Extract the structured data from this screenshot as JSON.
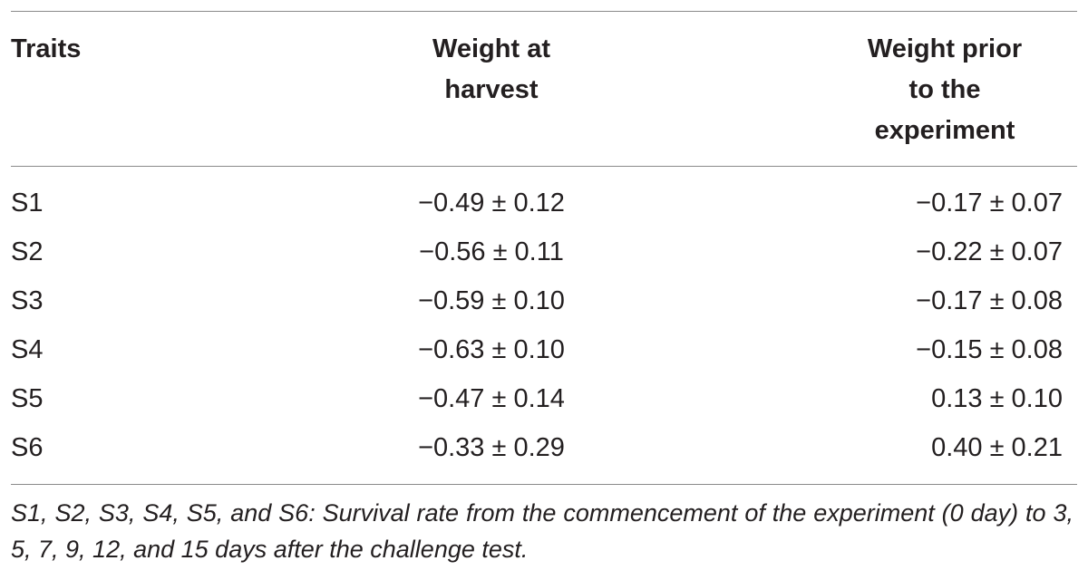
{
  "table": {
    "headers": {
      "traits": "Traits",
      "harvest": [
        "Weight at",
        "harvest"
      ],
      "prior": [
        "Weight prior",
        "to the",
        "experiment"
      ]
    },
    "rows": [
      {
        "trait": "S1",
        "harvest": "−0.49 ± 0.12",
        "prior": "−0.17 ± 0.07"
      },
      {
        "trait": "S2",
        "harvest": "−0.56 ± 0.11",
        "prior": "−0.22 ± 0.07"
      },
      {
        "trait": "S3",
        "harvest": "−0.59 ± 0.10",
        "prior": "−0.17 ± 0.08"
      },
      {
        "trait": "S4",
        "harvest": "−0.63 ± 0.10",
        "prior": "−0.15 ± 0.08"
      },
      {
        "trait": "S5",
        "harvest": "−0.47 ± 0.14",
        "prior": "0.13 ± 0.10"
      },
      {
        "trait": "S6",
        "harvest": "−0.33 ± 0.29",
        "prior": "0.40 ± 0.21"
      }
    ]
  },
  "footnote": "S1, S2, S3, S4, S5, and S6: Survival rate from the commencement of the experiment (0 day) to 3, 5, 7, 9, 12, and 15 days after the challenge test."
}
